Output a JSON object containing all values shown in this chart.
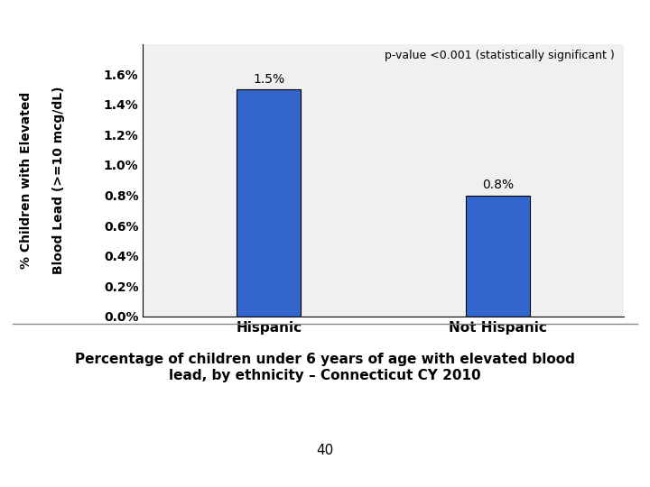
{
  "categories": [
    "Hispanic",
    "Not Hispanic"
  ],
  "values": [
    1.5,
    0.8
  ],
  "bar_colors": [
    "#3366CC",
    "#3366CC"
  ],
  "bar_labels": [
    "1.5%",
    "0.8%"
  ],
  "ylabel_line1": "% Children with Elevated",
  "ylabel_line2": "Blood Lead (>=10 mcg/dL)",
  "ylim": [
    0,
    0.018
  ],
  "yticks": [
    0.0,
    0.002,
    0.004,
    0.006,
    0.008,
    0.01,
    0.012,
    0.014,
    0.016
  ],
  "ytick_labels": [
    "0.0%",
    "0.2%",
    "0.4%",
    "0.6%",
    "0.8%",
    "1.0%",
    "1.2%",
    "1.4%",
    "1.6%"
  ],
  "pvalue_text": "p-value <0.001 (statistically significant )",
  "caption_line1": "Percentage of children under 6 years of age with elevated blood",
  "caption_line2": "lead, by ethnicity – Connecticut CY 2010",
  "page_number": "40",
  "bg_color": "#FFFFFF",
  "plot_bg_color": "#F0F0F0",
  "bar_edge_color": "#000000",
  "bar_width": 0.28,
  "ylabel_fontsize": 10,
  "tick_fontsize": 10,
  "pvalue_fontsize": 9,
  "bar_label_fontsize": 10,
  "caption_fontsize": 11
}
